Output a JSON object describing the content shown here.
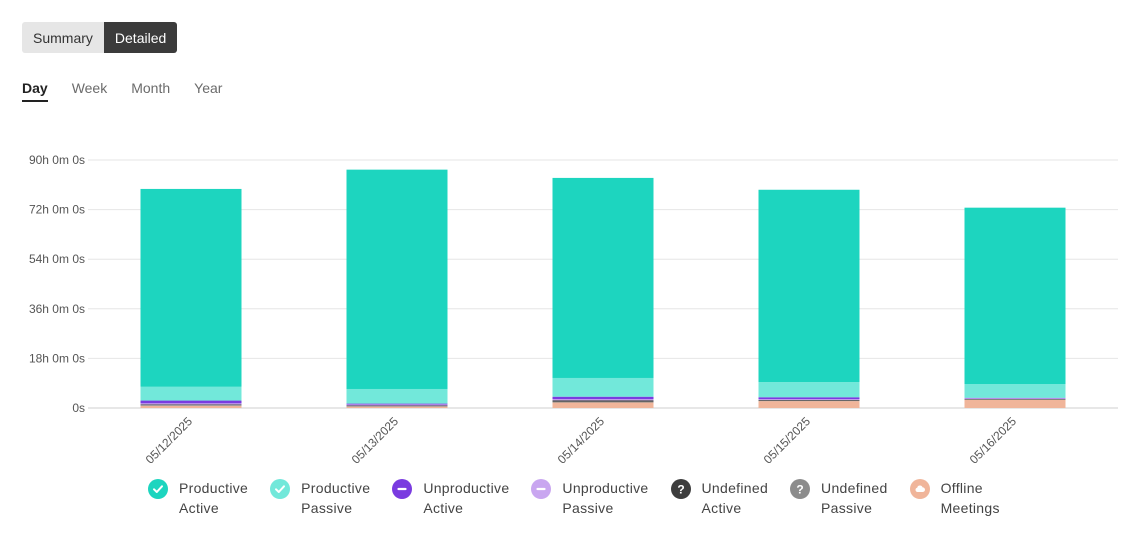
{
  "view_toggle": {
    "summary_label": "Summary",
    "detailed_label": "Detailed",
    "selected": "Detailed"
  },
  "period_tabs": [
    {
      "label": "Day",
      "active": true
    },
    {
      "label": "Week",
      "active": false
    },
    {
      "label": "Month",
      "active": false
    },
    {
      "label": "Year",
      "active": false
    }
  ],
  "chart_data": {
    "type": "bar",
    "stacked": true,
    "categories": [
      "05/12/2025",
      "05/13/2025",
      "05/14/2025",
      "05/15/2025",
      "05/16/2025"
    ],
    "yticks": [
      "0s",
      "18h 0m 0s",
      "36h 0m 0s",
      "54h 0m 0s",
      "72h 0m 0s",
      "90h 0m 0s"
    ],
    "ylim": [
      0,
      90
    ],
    "grid": true,
    "legend_position": "bottom",
    "series": [
      {
        "name": "Offline Meetings",
        "color": "#f0b59a",
        "values": [
          0.8,
          0.5,
          2.0,
          2.5,
          3.0
        ]
      },
      {
        "name": "Undefined Passive",
        "color": "#8c8c8c",
        "values": [
          0.3,
          0.2,
          0.3,
          0.2,
          0.1
        ]
      },
      {
        "name": "Undefined Active",
        "color": "#3d3d3d",
        "values": [
          0.2,
          0.2,
          0.5,
          0.2,
          0.2
        ]
      },
      {
        "name": "Unproductive Passive",
        "color": "#c9a6f0",
        "values": [
          0.4,
          0.4,
          0.4,
          0.3,
          0.2
        ]
      },
      {
        "name": "Unproductive Active",
        "color": "#7a3be0",
        "values": [
          1.0,
          0.3,
          0.9,
          0.7,
          0.2
        ]
      },
      {
        "name": "Productive Passive",
        "color": "#72e8da",
        "values": [
          5.0,
          5.3,
          6.8,
          5.5,
          5.0
        ]
      },
      {
        "name": "Productive Active",
        "color": "#1dd5bf",
        "values": [
          71.8,
          79.6,
          72.6,
          69.8,
          64.0
        ]
      }
    ]
  },
  "legend": [
    {
      "line1": "Productive",
      "line2": "Active",
      "color": "#1dd5bf",
      "icon": "check-circle-icon"
    },
    {
      "line1": "Productive",
      "line2": "Passive",
      "color": "#72e8da",
      "icon": "check-circle-icon"
    },
    {
      "line1": "Unproductive",
      "line2": "Active",
      "color": "#7a3be0",
      "icon": "minus-circle-icon"
    },
    {
      "line1": "Unproductive",
      "line2": "Passive",
      "color": "#c9a6f0",
      "icon": "minus-circle-icon"
    },
    {
      "line1": "Undefined",
      "line2": "Active",
      "color": "#3d3d3d",
      "icon": "question-circle-icon"
    },
    {
      "line1": "Undefined",
      "line2": "Passive",
      "color": "#8c8c8c",
      "icon": "question-circle-icon"
    },
    {
      "line1": "Offline",
      "line2": "Meetings",
      "color": "#f0b59a",
      "icon": "cloud-circle-icon"
    }
  ]
}
